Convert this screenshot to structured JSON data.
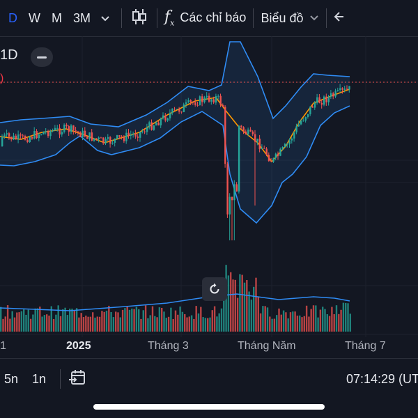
{
  "toolbar": {
    "timeframes": [
      "D",
      "W",
      "M",
      "3M"
    ],
    "active_timeframe": "D",
    "indicators_label": "Các chỉ báo",
    "chart_type_label": "Biểu đồ"
  },
  "chart": {
    "symbol_partial": "1D",
    "price_partial": ")",
    "x_ticks": [
      "1",
      "2025",
      "Tháng 3",
      "Tháng Năm",
      "Tháng 7"
    ],
    "colors": {
      "up": "#26a69a",
      "down": "#ef5350",
      "bands": "#2f8cf5",
      "middle": "#ff9800",
      "volume_ma": "#2f8cf5"
    }
  },
  "bottom": {
    "ranges": [
      "5n",
      "1n"
    ],
    "time": "07:14:29 (UT"
  }
}
